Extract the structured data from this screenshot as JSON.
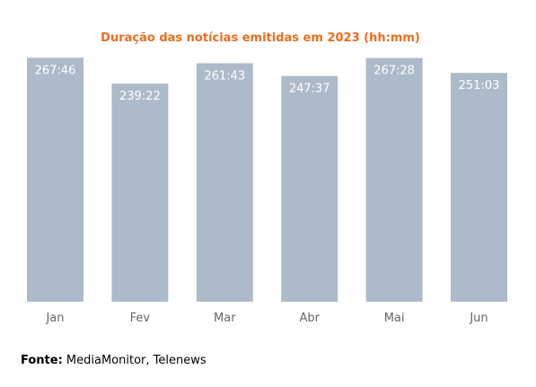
{
  "chart_data": {
    "type": "bar",
    "title": "Duração das notícias emitidas em 2023 (hh:mm)",
    "categories": [
      "Jan",
      "Fev",
      "Mar",
      "Abr",
      "Mai",
      "Jun"
    ],
    "values": [
      267.77,
      239.37,
      261.72,
      247.62,
      267.47,
      251.05
    ],
    "value_labels": [
      "267:46",
      "239:22",
      "261:43",
      "247:37",
      "267:28",
      "251:03"
    ],
    "unit": "hh:mm",
    "ylim": [
      0,
      270
    ],
    "grid": false,
    "colors": {
      "bar": "#adbac9",
      "title": "#ee6c1d",
      "data_label": "#ffffff",
      "tick_label": "#666666"
    }
  },
  "source": {
    "label": "Fonte:",
    "text": "MediaMonitor, Telenews"
  }
}
